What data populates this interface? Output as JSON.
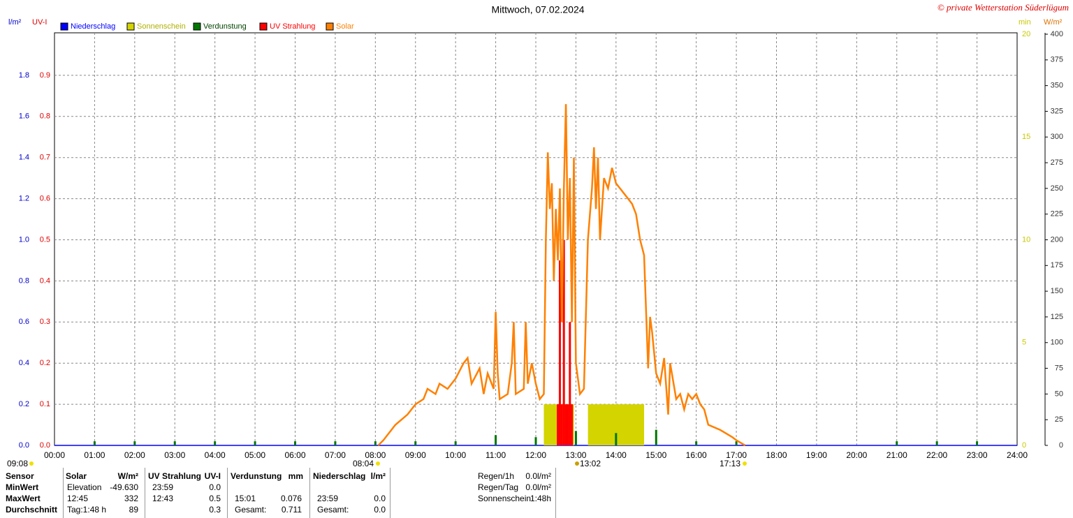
{
  "chart_data": {
    "type": "line",
    "title": "Mittwoch, 07.02.2024",
    "copyright": "© private Wetterstation Süderlügum",
    "ylabel": "l/m²",
    "y2label": "UV-I",
    "y3label": "min",
    "y4label": "W/m²",
    "xlim": [
      0,
      24
    ],
    "xticks": [
      {
        "value": 0,
        "label": "00:00"
      },
      {
        "value": 1,
        "label": "01:00"
      },
      {
        "value": 2,
        "label": "02:00"
      },
      {
        "value": 3,
        "label": "03:00"
      },
      {
        "value": 4,
        "label": "04:00"
      },
      {
        "value": 5,
        "label": "05:00"
      },
      {
        "value": 6,
        "label": "06:00"
      },
      {
        "value": 7,
        "label": "07:00"
      },
      {
        "value": 8,
        "label": "08:00"
      },
      {
        "value": 9,
        "label": "09:00"
      },
      {
        "value": 10,
        "label": "10:00"
      },
      {
        "value": 11,
        "label": "11:00"
      },
      {
        "value": 12,
        "label": "12:00"
      },
      {
        "value": 13,
        "label": "13:00"
      },
      {
        "value": 14,
        "label": "14:00"
      },
      {
        "value": 15,
        "label": "15:00"
      },
      {
        "value": 16,
        "label": "16:00"
      },
      {
        "value": 17,
        "label": "17:00"
      },
      {
        "value": 18,
        "label": "18:00"
      },
      {
        "value": 19,
        "label": "19:00"
      },
      {
        "value": 20,
        "label": "20:00"
      },
      {
        "value": 21,
        "label": "21:00"
      },
      {
        "value": 22,
        "label": "22:00"
      },
      {
        "value": 23,
        "label": "23:00"
      },
      {
        "value": 24,
        "label": "24:00"
      }
    ],
    "ylim": [
      0,
      2
    ],
    "yticks": [
      {
        "value": 0,
        "label": "0.0"
      },
      0.2,
      0.4,
      0.6,
      0.8,
      {
        "value": 1,
        "label": "1.0"
      },
      1.2,
      1.4,
      1.6,
      1.8
    ],
    "y2lim": [
      0,
      1
    ],
    "y2ticks": [
      {
        "value": 0,
        "label": "0.0"
      },
      0.1,
      0.2,
      0.3,
      0.4,
      0.5,
      0.6,
      0.7,
      0.8,
      0.9
    ],
    "y3lim": [
      0,
      20
    ],
    "y3ticks": [
      0,
      5,
      10,
      15,
      20
    ],
    "y4lim": [
      0,
      400
    ],
    "y4ticks": [
      0,
      25,
      50,
      75,
      100,
      125,
      150,
      175,
      200,
      225,
      250,
      275,
      300,
      325,
      350,
      375,
      400
    ],
    "grid": true,
    "series": [
      {
        "name": "Niederschlag",
        "color": "#0000ff",
        "axis": "y",
        "x": [
          0,
          24
        ],
        "values": [
          0,
          0
        ]
      },
      {
        "name": "Sonnenschein",
        "color": "#d4d400",
        "axis": "y3",
        "x_start": [
          12.2,
          13.3
        ],
        "x_end": [
          12.95,
          14.7
        ],
        "values": [
          2,
          2
        ]
      },
      {
        "name": "Verdunstung",
        "color": "#007700",
        "axis": "y",
        "x": [
          1,
          2,
          3,
          4,
          5,
          6,
          7,
          8,
          9,
          10,
          11,
          12,
          13,
          14,
          15,
          16,
          17,
          21,
          22,
          23
        ],
        "values": [
          0.02,
          0.02,
          0.02,
          0.02,
          0.02,
          0.02,
          0.02,
          0.02,
          0.02,
          0.02,
          0.05,
          0.04,
          0.07,
          0.06,
          0.076,
          0.02,
          0.02,
          0.02,
          0.02,
          0.02
        ]
      },
      {
        "name": "UV Strahlung",
        "color": "#ff0000",
        "axis": "y2",
        "x": [
          12.55,
          12.6,
          12.65,
          12.7,
          12.75,
          12.8,
          12.85,
          12.9
        ],
        "values": [
          0.1,
          0.45,
          0.1,
          0.5,
          0.1,
          0.1,
          0.3,
          0.1
        ]
      },
      {
        "name": "Solar",
        "color": "#ff8000",
        "axis": "y4",
        "x": [
          8.07,
          8.2,
          8.5,
          8.8,
          9.0,
          9.2,
          9.3,
          9.5,
          9.6,
          9.8,
          10.0,
          10.2,
          10.3,
          10.4,
          10.6,
          10.7,
          10.8,
          10.95,
          11.0,
          11.05,
          11.1,
          11.3,
          11.4,
          11.45,
          11.5,
          11.7,
          11.75,
          11.8,
          11.9,
          12.0,
          12.1,
          12.2,
          12.25,
          12.3,
          12.35,
          12.4,
          12.45,
          12.5,
          12.55,
          12.6,
          12.65,
          12.7,
          12.75,
          12.8,
          12.85,
          12.9,
          12.95,
          13.0,
          13.1,
          13.2,
          13.3,
          13.4,
          13.45,
          13.5,
          13.55,
          13.6,
          13.7,
          13.8,
          13.9,
          14.0,
          14.2,
          14.4,
          14.5,
          14.6,
          14.7,
          14.8,
          14.85,
          14.9,
          15.0,
          15.1,
          15.2,
          15.3,
          15.35,
          15.5,
          15.6,
          15.7,
          15.8,
          15.9,
          16.0,
          16.1,
          16.2,
          16.3,
          16.6,
          16.9,
          17.0,
          17.22
        ],
        "values": [
          0,
          5,
          20,
          30,
          40,
          45,
          55,
          50,
          60,
          55,
          65,
          80,
          85,
          60,
          75,
          50,
          70,
          55,
          130,
          70,
          45,
          50,
          80,
          120,
          50,
          55,
          120,
          60,
          80,
          60,
          45,
          50,
          200,
          285,
          230,
          255,
          160,
          230,
          180,
          250,
          120,
          250,
          332,
          200,
          260,
          120,
          280,
          80,
          50,
          55,
          200,
          250,
          290,
          230,
          280,
          200,
          260,
          250,
          270,
          255,
          245,
          235,
          225,
          200,
          185,
          75,
          125,
          110,
          70,
          60,
          85,
          30,
          80,
          45,
          50,
          35,
          50,
          45,
          50,
          40,
          35,
          20,
          15,
          8,
          5,
          0
        ]
      }
    ],
    "annotations": [
      "09:08",
      "08:04",
      "13:02",
      "17:13"
    ]
  },
  "stats": {
    "header": {
      "sensor": "Sensor",
      "solar": "Solar",
      "solar_unit": "W/m²",
      "uv": "UV Strahlung",
      "uv_unit": "UV-I",
      "evap": "Verdunstung",
      "evap_unit": "mm",
      "rain": "Niederschlag",
      "rain_unit": "l/m²"
    },
    "rows": [
      {
        "label": "MinWert",
        "solar_time": "Elevation",
        "solar_value": "-49.630",
        "uv_time": "23:59",
        "uv_value": "0.0"
      },
      {
        "label": "MaxWert",
        "solar_time": "12:45",
        "solar_value": "332",
        "uv_time": "12:43",
        "uv_value": "0.5",
        "evap_time": "15:01",
        "evap_value": "0.076",
        "rain_time": "23:59",
        "rain_value": "0.0"
      },
      {
        "label": "Durchschnitt",
        "solar_time": "Tag:1:48 h",
        "solar_value": "89",
        "uv_value": "0.3",
        "evap_time": "Gesamt:",
        "evap_value": "0.711",
        "rain_time": "Gesamt:",
        "rain_value": "0.0"
      }
    ],
    "summary": [
      {
        "label": "Regen/1h",
        "value": "0.0l/m²"
      },
      {
        "label": "Regen/Tag",
        "value": "0.0l/m²"
      },
      {
        "label": "Sonnenschein",
        "value": "1:48h"
      }
    ]
  }
}
